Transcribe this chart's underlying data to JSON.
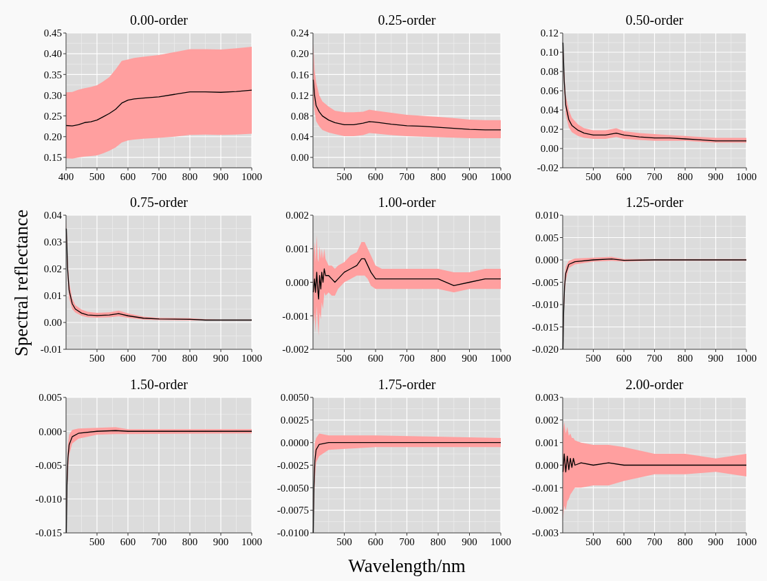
{
  "chart_data": [
    {
      "type": "line",
      "title": "0.00-order",
      "xlim": [
        400,
        1000
      ],
      "xticks": [
        400,
        500,
        600,
        700,
        800,
        900,
        1000
      ],
      "ylim": [
        0.125,
        0.45
      ],
      "yticks": [
        {
          "value": 0.15,
          "label": "0.15"
        },
        {
          "value": 0.2,
          "label": "0.20"
        },
        {
          "value": 0.25,
          "label": "0.25"
        },
        {
          "value": 0.3,
          "label": "0.30"
        },
        {
          "value": 0.35,
          "label": "0.35"
        },
        {
          "value": 0.4,
          "label": "0.40"
        },
        {
          "value": 0.45,
          "label": "0.45"
        }
      ],
      "grid": true,
      "series": [
        {
          "color": "#000000",
          "x": [
            400,
            420,
            440,
            460,
            480,
            500,
            520,
            540,
            560,
            580,
            600,
            620,
            650,
            700,
            750,
            800,
            850,
            900,
            950,
            1000
          ],
          "values": [
            0.227,
            0.226,
            0.229,
            0.234,
            0.236,
            0.24,
            0.248,
            0.256,
            0.266,
            0.281,
            0.288,
            0.291,
            0.293,
            0.296,
            0.302,
            0.308,
            0.308,
            0.307,
            0.309,
            0.312
          ],
          "upper": [
            0.307,
            0.308,
            0.313,
            0.317,
            0.32,
            0.324,
            0.333,
            0.344,
            0.362,
            0.383,
            0.386,
            0.39,
            0.393,
            0.397,
            0.404,
            0.411,
            0.411,
            0.41,
            0.413,
            0.417
          ],
          "lower": [
            0.148,
            0.147,
            0.15,
            0.152,
            0.153,
            0.155,
            0.16,
            0.166,
            0.174,
            0.186,
            0.191,
            0.193,
            0.195,
            0.197,
            0.2,
            0.204,
            0.205,
            0.204,
            0.205,
            0.207
          ]
        }
      ]
    },
    {
      "type": "line",
      "title": "0.25-order",
      "xlim": [
        400,
        1000
      ],
      "xticks": [
        500,
        600,
        700,
        800,
        900,
        1000
      ],
      "ylim": [
        -0.02,
        0.24
      ],
      "yticks": [
        {
          "value": 0,
          "label": "0.00"
        },
        {
          "value": 0.04,
          "label": "0.04"
        },
        {
          "value": 0.08,
          "label": "0.08"
        },
        {
          "value": 0.12,
          "label": "0.12"
        },
        {
          "value": 0.16,
          "label": "0.16"
        },
        {
          "value": 0.2,
          "label": "0.20"
        },
        {
          "value": 0.24,
          "label": "0.24"
        }
      ],
      "grid": true,
      "series": [
        {
          "color": "#000000",
          "x": [
            401,
            405,
            410,
            420,
            430,
            450,
            470,
            500,
            530,
            560,
            580,
            600,
            650,
            700,
            750,
            800,
            850,
            900,
            950,
            1000
          ],
          "values": [
            0.15,
            0.12,
            0.1,
            0.088,
            0.08,
            0.072,
            0.067,
            0.063,
            0.063,
            0.066,
            0.069,
            0.068,
            0.064,
            0.061,
            0.06,
            0.058,
            0.056,
            0.054,
            0.053,
            0.053
          ],
          "upper": [
            0.22,
            0.17,
            0.145,
            0.12,
            0.108,
            0.098,
            0.09,
            0.087,
            0.087,
            0.088,
            0.092,
            0.09,
            0.086,
            0.082,
            0.08,
            0.078,
            0.076,
            0.073,
            0.072,
            0.072
          ],
          "lower": [
            0.11,
            0.09,
            0.07,
            0.06,
            0.053,
            0.048,
            0.045,
            0.041,
            0.041,
            0.043,
            0.047,
            0.046,
            0.043,
            0.041,
            0.04,
            0.039,
            0.038,
            0.037,
            0.037,
            0.037
          ]
        }
      ]
    },
    {
      "type": "line",
      "title": "0.50-order",
      "xlim": [
        400,
        1000
      ],
      "xticks": [
        500,
        600,
        700,
        800,
        900,
        1000
      ],
      "ylim": [
        -0.02,
        0.12
      ],
      "yticks": [
        {
          "value": -0.02,
          "label": "-0.02"
        },
        {
          "value": 0,
          "label": "0.00"
        },
        {
          "value": 0.02,
          "label": "0.02"
        },
        {
          "value": 0.04,
          "label": "0.04"
        },
        {
          "value": 0.06,
          "label": "0.06"
        },
        {
          "value": 0.08,
          "label": "0.08"
        },
        {
          "value": 0.1,
          "label": "0.10"
        },
        {
          "value": 0.12,
          "label": "0.12"
        }
      ],
      "grid": true,
      "series": [
        {
          "color": "#000000",
          "x": [
            401,
            405,
            410,
            420,
            430,
            450,
            470,
            500,
            540,
            575,
            600,
            650,
            700,
            750,
            800,
            850,
            900,
            1000
          ],
          "values": [
            0.11,
            0.07,
            0.045,
            0.03,
            0.024,
            0.019,
            0.016,
            0.014,
            0.014,
            0.016,
            0.014,
            0.012,
            0.011,
            0.011,
            0.01,
            0.009,
            0.008,
            0.008
          ],
          "upper": [
            0.11,
            0.08,
            0.055,
            0.04,
            0.032,
            0.025,
            0.021,
            0.019,
            0.019,
            0.021,
            0.018,
            0.016,
            0.015,
            0.014,
            0.013,
            0.012,
            0.011,
            0.011
          ],
          "lower": [
            0.1,
            0.06,
            0.035,
            0.022,
            0.017,
            0.013,
            0.011,
            0.01,
            0.01,
            0.012,
            0.01,
            0.009,
            0.008,
            0.008,
            0.008,
            0.007,
            0.006,
            0.006
          ]
        }
      ]
    },
    {
      "type": "line",
      "title": "0.75-order",
      "ylabel": "Spectral reflectance",
      "xlim": [
        400,
        1000
      ],
      "xticks": [
        500,
        600,
        700,
        800,
        900,
        1000
      ],
      "ylim": [
        -0.01,
        0.04
      ],
      "yticks": [
        {
          "value": -0.01,
          "label": "-0.01"
        },
        {
          "value": 0,
          "label": "0.00"
        },
        {
          "value": 0.01,
          "label": "0.01"
        },
        {
          "value": 0.02,
          "label": "0.02"
        },
        {
          "value": 0.03,
          "label": "0.03"
        },
        {
          "value": 0.04,
          "label": "0.04"
        }
      ],
      "grid": true,
      "series": [
        {
          "color": "#000000",
          "x": [
            401,
            405,
            410,
            420,
            430,
            450,
            470,
            500,
            540,
            570,
            600,
            650,
            700,
            800,
            850,
            900,
            1000
          ],
          "values": [
            0.035,
            0.02,
            0.012,
            0.007,
            0.005,
            0.0035,
            0.0028,
            0.0026,
            0.0028,
            0.0033,
            0.0025,
            0.0016,
            0.0013,
            0.0012,
            0.0009,
            0.0009,
            0.0009
          ],
          "upper": [
            0.038,
            0.024,
            0.015,
            0.009,
            0.0065,
            0.0048,
            0.004,
            0.0036,
            0.0038,
            0.0044,
            0.0034,
            0.0022,
            0.0017,
            0.0016,
            0.0012,
            0.0011,
            0.0011
          ],
          "lower": [
            0.032,
            0.017,
            0.009,
            0.005,
            0.0037,
            0.0025,
            0.0019,
            0.0018,
            0.0019,
            0.0023,
            0.0017,
            0.0011,
            0.0009,
            0.0008,
            0.0007,
            0.0007,
            0.0007
          ]
        }
      ]
    },
    {
      "type": "line",
      "title": "1.00-order",
      "xlim": [
        400,
        1000
      ],
      "xticks": [
        500,
        600,
        700,
        800,
        900,
        1000
      ],
      "ylim": [
        -0.002,
        0.002
      ],
      "yticks": [
        {
          "value": -0.002,
          "label": "-0.002"
        },
        {
          "value": -0.001,
          "label": "-0.001"
        },
        {
          "value": 0,
          "label": "0.000"
        },
        {
          "value": 0.001,
          "label": "0.001"
        },
        {
          "value": 0.002,
          "label": "0.002"
        }
      ],
      "grid": true,
      "series": [
        {
          "color": "#000000",
          "x": [
            401,
            405,
            408,
            412,
            415,
            418,
            421,
            425,
            428,
            432,
            436,
            440,
            450,
            460,
            470,
            480,
            500,
            520,
            540,
            555,
            565,
            575,
            585,
            600,
            620,
            650,
            700,
            750,
            780,
            800,
            850,
            900,
            950,
            1000
          ],
          "values": [
            -0.0003,
            0.0001,
            -0.0003,
            0.0003,
            -0.0002,
            -0.0005,
            0.0002,
            -0.0002,
            0.0003,
            0,
            0.0004,
            0.0002,
            0.0002,
            0.0001,
            0,
            0.0001,
            0.0003,
            0.0004,
            0.0005,
            0.0007,
            0.0007,
            0.0005,
            0.0003,
            0.0001,
            0.0001,
            0.0001,
            0.0001,
            0.0001,
            0.0001,
            0.0001,
            -0.0001,
            0,
            0.0001,
            0.0001
          ],
          "upper": [
            0.0008,
            0.0012,
            0.0006,
            0.0014,
            0.0007,
            0.0006,
            0.0011,
            0.0007,
            0.001,
            0.0007,
            0.001,
            0.0007,
            0.0005,
            0.0005,
            0.0004,
            0.0005,
            0.0006,
            0.0008,
            0.0009,
            0.0012,
            0.0012,
            0.001,
            0.0008,
            0.0005,
            0.0004,
            0.0004,
            0.0004,
            0.0004,
            0.0004,
            0.0004,
            0.0003,
            0.0003,
            0.0004,
            0.0004
          ],
          "lower": [
            -0.0013,
            -0.0009,
            -0.0015,
            -0.0007,
            -0.0012,
            -0.0016,
            -0.0009,
            -0.0011,
            -0.0006,
            -0.0008,
            -0.0003,
            -0.0004,
            -0.0003,
            -0.0004,
            -0.0004,
            -0.0002,
            0,
            0.0001,
            0.0002,
            0.0002,
            0.0002,
            0.0001,
            -0.0001,
            -0.0002,
            -0.0002,
            -0.0002,
            -0.0002,
            -0.0002,
            -0.0002,
            -0.0002,
            -0.0003,
            -0.0002,
            -0.0002,
            -0.0002
          ]
        }
      ]
    },
    {
      "type": "line",
      "title": "1.25-order",
      "xlim": [
        400,
        1000
      ],
      "xticks": [
        500,
        600,
        700,
        800,
        900,
        1000
      ],
      "ylim": [
        -0.02,
        0.01
      ],
      "yticks": [
        {
          "value": -0.02,
          "label": "-0.020"
        },
        {
          "value": -0.015,
          "label": "-0.015"
        },
        {
          "value": -0.01,
          "label": "-0.010"
        },
        {
          "value": -0.005,
          "label": "-0.005"
        },
        {
          "value": 0,
          "label": "0.000"
        },
        {
          "value": 0.005,
          "label": "0.005"
        },
        {
          "value": 0.01,
          "label": "0.010"
        }
      ],
      "grid": true,
      "series": [
        {
          "color": "#000000",
          "x": [
            401,
            403,
            406,
            410,
            420,
            440,
            500,
            560,
            600,
            700,
            1000
          ],
          "values": [
            -0.02,
            -0.012,
            -0.006,
            -0.003,
            -0.001,
            -0.0004,
            0,
            0.0002,
            -0.0001,
            0,
            0
          ],
          "upper": [
            -0.018,
            -0.01,
            -0.004,
            -0.0015,
            -0.0002,
            0.0003,
            0.0005,
            0.0007,
            0.0002,
            0.0002,
            0.0002
          ],
          "lower": [
            -0.02,
            -0.014,
            -0.008,
            -0.0045,
            -0.0018,
            -0.001,
            -0.0004,
            -0.0002,
            -0.0004,
            -0.0002,
            -0.0002
          ]
        }
      ]
    },
    {
      "type": "line",
      "title": "1.50-order",
      "xlim": [
        400,
        1000
      ],
      "xticks": [
        500,
        600,
        700,
        800,
        900,
        1000
      ],
      "ylim": [
        -0.015,
        0.005
      ],
      "yticks": [
        {
          "value": -0.015,
          "label": "-0.015"
        },
        {
          "value": -0.01,
          "label": "-0.010"
        },
        {
          "value": -0.005,
          "label": "-0.005"
        },
        {
          "value": 0,
          "label": "0.000"
        },
        {
          "value": 0.005,
          "label": "0.005"
        }
      ],
      "grid": true,
      "series": [
        {
          "color": "#000000",
          "x": [
            401,
            403,
            406,
            410,
            420,
            440,
            500,
            560,
            600,
            1000
          ],
          "values": [
            -0.015,
            -0.008,
            -0.004,
            -0.002,
            -0.0008,
            -0.0003,
            0,
            0.0001,
            0,
            0
          ],
          "upper": [
            -0.013,
            -0.006,
            -0.002,
            -0.0005,
            0.0002,
            0.0004,
            0.0005,
            0.0006,
            0.0003,
            0.0003
          ],
          "lower": [
            -0.015,
            -0.01,
            -0.006,
            -0.0035,
            -0.0018,
            -0.0011,
            -0.0005,
            -0.0004,
            -0.0004,
            -0.0003
          ]
        }
      ]
    },
    {
      "type": "line",
      "title": "1.75-order",
      "xlabel": "Wavelength/nm",
      "xlim": [
        400,
        1000
      ],
      "xticks": [
        500,
        600,
        700,
        800,
        900,
        1000
      ],
      "ylim": [
        -0.01,
        0.005
      ],
      "yticks": [
        {
          "value": -0.01,
          "label": "-0.0100"
        },
        {
          "value": -0.0075,
          "label": "-0.0075"
        },
        {
          "value": -0.005,
          "label": "-0.0050"
        },
        {
          "value": -0.0025,
          "label": "-0.0025"
        },
        {
          "value": 0,
          "label": "0.0000"
        },
        {
          "value": 0.0025,
          "label": "0.0025"
        },
        {
          "value": 0.005,
          "label": "0.0050"
        }
      ],
      "grid": true,
      "series": [
        {
          "color": "#000000",
          "x": [
            401,
            403,
            406,
            410,
            420,
            450,
            600,
            1000
          ],
          "values": [
            -0.01,
            -0.005,
            -0.002,
            -0.0008,
            -0.0002,
            0,
            0,
            0
          ],
          "upper": [
            -0.008,
            -0.003,
            0,
            0.0005,
            0.001,
            0.0008,
            0.0008,
            0.0005
          ],
          "lower": [
            -0.01,
            -0.007,
            -0.004,
            -0.0022,
            -0.0015,
            -0.0008,
            -0.0005,
            -0.0005
          ]
        }
      ]
    },
    {
      "type": "line",
      "title": "2.00-order",
      "xlim": [
        400,
        1000
      ],
      "xticks": [
        500,
        600,
        700,
        800,
        900,
        1000
      ],
      "ylim": [
        -0.003,
        0.003
      ],
      "yticks": [
        {
          "value": -0.003,
          "label": "-0.003"
        },
        {
          "value": -0.002,
          "label": "-0.002"
        },
        {
          "value": -0.001,
          "label": "-0.001"
        },
        {
          "value": 0,
          "label": "0.000"
        },
        {
          "value": 0.001,
          "label": "0.001"
        },
        {
          "value": 0.002,
          "label": "0.002"
        },
        {
          "value": 0.003,
          "label": "0.003"
        }
      ],
      "grid": true,
      "series": [
        {
          "color": "#000000",
          "x": [
            401,
            405,
            410,
            415,
            420,
            425,
            430,
            435,
            440,
            460,
            500,
            550,
            600,
            700,
            800,
            900,
            1000
          ],
          "values": [
            -0.0003,
            0.0005,
            -0.0003,
            0.0004,
            -0.0002,
            0.0003,
            -0.0001,
            0.0003,
            0,
            0.0001,
            0,
            0.0001,
            0,
            0,
            0,
            0,
            0
          ],
          "upper": [
            0.0015,
            0.0019,
            0.0014,
            0.0017,
            0.0013,
            0.0014,
            0.0012,
            0.0012,
            0.0011,
            0.001,
            0.0009,
            0.0009,
            0.0008,
            0.0005,
            0.0005,
            0.0003,
            0.0005
          ],
          "lower": [
            -0.0024,
            -0.0018,
            -0.002,
            -0.0016,
            -0.0015,
            -0.0013,
            -0.0012,
            -0.0011,
            -0.001,
            -0.001,
            -0.0009,
            -0.0009,
            -0.0007,
            -0.0004,
            -0.0004,
            -0.0003,
            -0.0005
          ]
        }
      ]
    }
  ]
}
